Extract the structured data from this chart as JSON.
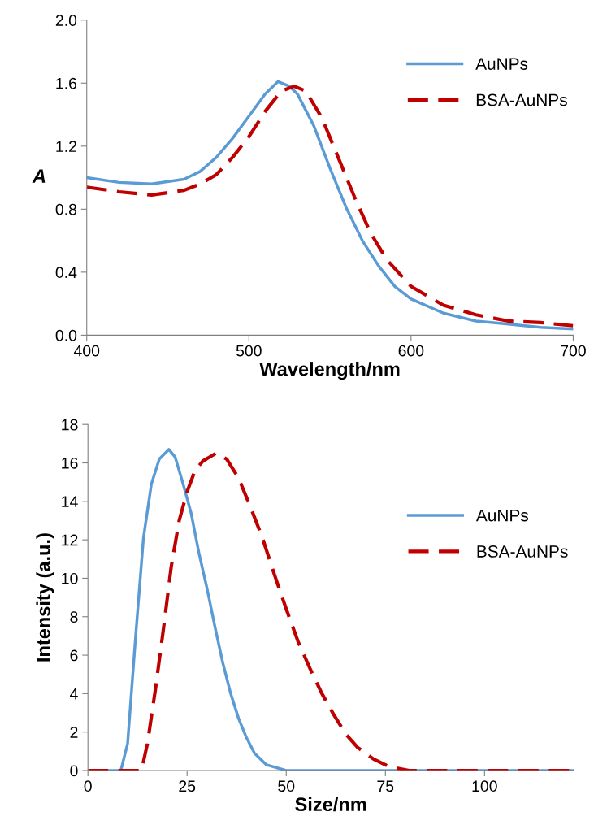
{
  "chart_data": [
    {
      "type": "line",
      "xlabel": "Wavelength/nm",
      "ylabel": "A",
      "xlim": [
        400,
        700
      ],
      "xticks": [
        400,
        500,
        600,
        700
      ],
      "ylim": [
        0,
        2
      ],
      "yticks": [
        {
          "value": 0,
          "label": "0.0"
        },
        {
          "value": 0.4,
          "label": "0.4"
        },
        {
          "value": 0.8,
          "label": "0.8"
        },
        {
          "value": 1.2,
          "label": "1.2"
        },
        {
          "value": 1.6,
          "label": "1.6"
        },
        {
          "value": 2,
          "label": "2.0"
        }
      ],
      "grid": false,
      "legend": "top right",
      "series": [
        {
          "name": "AuNPs",
          "color": "#5b9bd5",
          "line_style": "solid",
          "x": [
            400,
            420,
            440,
            460,
            470,
            480,
            490,
            500,
            510,
            518,
            525,
            530,
            540,
            550,
            560,
            570,
            580,
            590,
            600,
            620,
            640,
            660,
            680,
            700
          ],
          "values": [
            1.0,
            0.97,
            0.96,
            0.99,
            1.04,
            1.13,
            1.25,
            1.39,
            1.53,
            1.61,
            1.58,
            1.53,
            1.33,
            1.06,
            0.81,
            0.6,
            0.44,
            0.31,
            0.23,
            0.14,
            0.09,
            0.07,
            0.05,
            0.04
          ]
        },
        {
          "name": "BSA-AuNPs",
          "color": "#c00000",
          "line_style": "dashed",
          "x": [
            400,
            420,
            440,
            460,
            470,
            480,
            490,
            500,
            510,
            520,
            528,
            535,
            545,
            555,
            565,
            575,
            585,
            600,
            620,
            640,
            660,
            680,
            700
          ],
          "values": [
            0.94,
            0.91,
            0.89,
            0.92,
            0.96,
            1.02,
            1.13,
            1.26,
            1.42,
            1.55,
            1.58,
            1.55,
            1.38,
            1.13,
            0.88,
            0.65,
            0.48,
            0.31,
            0.19,
            0.13,
            0.09,
            0.08,
            0.06
          ]
        }
      ]
    },
    {
      "type": "line",
      "xlabel": "Size/nm",
      "ylabel": "Intensity (a.u.)",
      "xlim": [
        0,
        122.5
      ],
      "xticks": [
        0,
        25,
        50,
        75,
        100
      ],
      "ylim": [
        0,
        18
      ],
      "yticks": [
        0,
        2,
        4,
        6,
        8,
        10,
        12,
        14,
        16,
        18
      ],
      "grid": false,
      "legend": "top right",
      "series": [
        {
          "name": "AuNPs",
          "color": "#5b9bd5",
          "line_style": "solid",
          "x": [
            0,
            8.3,
            10,
            12,
            14,
            16,
            18,
            20.4,
            22,
            24,
            26,
            28,
            30,
            32,
            34,
            36,
            38,
            40,
            42,
            45,
            50,
            122.5
          ],
          "values": [
            0,
            0,
            1.4,
            6.9,
            12.1,
            14.9,
            16.2,
            16.7,
            16.3,
            14.9,
            13.4,
            11.3,
            9.5,
            7.5,
            5.6,
            4.0,
            2.7,
            1.7,
            0.9,
            0.3,
            0,
            0
          ]
        },
        {
          "name": "BSA-AuNPs",
          "color": "#c00000",
          "line_style": "dashed",
          "x": [
            0,
            13.5,
            15,
            17,
            19,
            21,
            23,
            25,
            27,
            29,
            32.3,
            35,
            38,
            41,
            44,
            47,
            50,
            53,
            56,
            59,
            62,
            65,
            68,
            72,
            76,
            81,
            122.5
          ],
          "values": [
            0,
            0,
            1.4,
            4.2,
            7.3,
            10.6,
            13.0,
            14.5,
            15.6,
            16.1,
            16.5,
            16.2,
            15.2,
            13.7,
            12.1,
            10.2,
            8.4,
            6.7,
            5.3,
            4.0,
            2.9,
            1.9,
            1.2,
            0.6,
            0.2,
            0,
            0
          ]
        }
      ]
    }
  ]
}
